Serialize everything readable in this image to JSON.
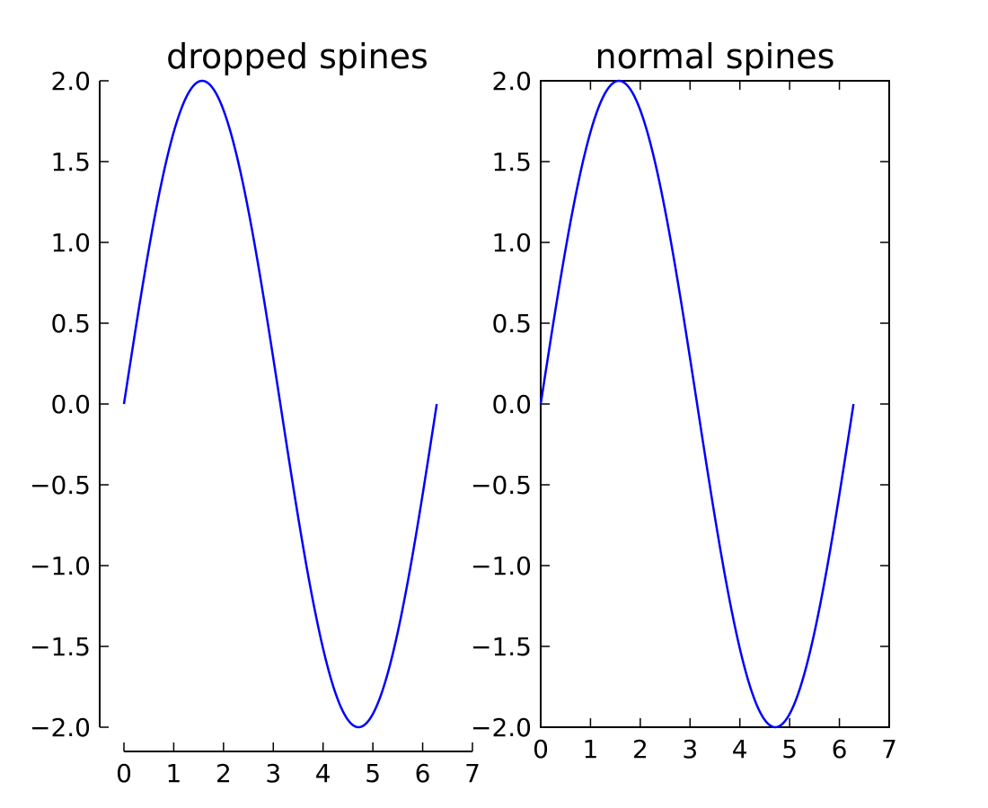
{
  "chart_data": [
    {
      "type": "line",
      "title": "dropped spines",
      "xlabel": "",
      "ylabel": "",
      "xlim": [
        0,
        7
      ],
      "ylim": [
        -2.0,
        2.0
      ],
      "xticks": [
        "0",
        "1",
        "2",
        "3",
        "4",
        "5",
        "6",
        "7"
      ],
      "yticks": [
        "−2.0",
        "−1.5",
        "−1.0",
        "−0.5",
        "0.0",
        "0.5",
        "1.0",
        "1.5",
        "2.0"
      ],
      "spines": "dropped (left and bottom only, offset outward)",
      "grid": false,
      "series": [
        {
          "color": "#0000ff",
          "function": "y = 2*sin(x)",
          "x_range": [
            0,
            6.283
          ],
          "x": [
            0,
            0.5236,
            1.0472,
            1.5708,
            2.0944,
            2.618,
            3.1416,
            3.6652,
            4.1888,
            4.7124,
            5.236,
            5.7596,
            6.2832
          ],
          "y": [
            0,
            1.0,
            1.732,
            2.0,
            1.732,
            1.0,
            0,
            -1.0,
            -1.732,
            -2.0,
            -1.732,
            -1.0,
            0
          ]
        }
      ]
    },
    {
      "type": "line",
      "title": "normal spines",
      "xlabel": "",
      "ylabel": "",
      "xlim": [
        0,
        7
      ],
      "ylim": [
        -2.0,
        2.0
      ],
      "xticks": [
        "0",
        "1",
        "2",
        "3",
        "4",
        "5",
        "6",
        "7"
      ],
      "yticks": [
        "−2.0",
        "−1.5",
        "−1.0",
        "−0.5",
        "0.0",
        "0.5",
        "1.0",
        "1.5",
        "2.0"
      ],
      "spines": "normal (full box)",
      "grid": false,
      "series": [
        {
          "color": "#0000ff",
          "function": "y = 2*sin(x)",
          "x_range": [
            0,
            6.283
          ],
          "x": [
            0,
            0.5236,
            1.0472,
            1.5708,
            2.0944,
            2.618,
            3.1416,
            3.6652,
            4.1888,
            4.7124,
            5.236,
            5.7596,
            6.2832
          ],
          "y": [
            0,
            1.0,
            1.732,
            2.0,
            1.732,
            1.0,
            0,
            -1.0,
            -1.732,
            -2.0,
            -1.732,
            -1.0,
            0
          ]
        }
      ]
    }
  ]
}
